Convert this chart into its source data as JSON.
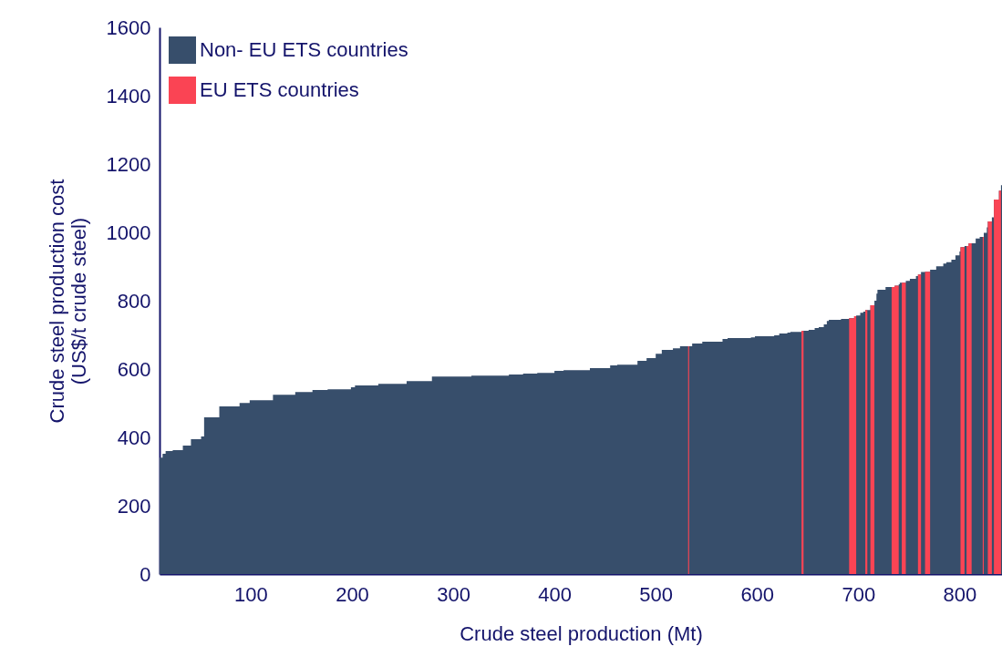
{
  "chart_data": {
    "type": "area",
    "xlabel": "Crude steel production (Mt)",
    "ylabel": "Crude steel production cost\n(US$/t crude steel)",
    "xlim": [
      10,
      842
    ],
    "xticks": [
      100,
      200,
      300,
      400,
      500,
      600,
      700,
      800
    ],
    "ylim": [
      0,
      1600
    ],
    "yticks": [
      0,
      200,
      400,
      600,
      800,
      1000,
      1200,
      1400,
      1600
    ],
    "grid": false,
    "legend": "top left",
    "series": [
      {
        "name": "Non- EU ETS countries",
        "color": "#374e6b",
        "x": [
          10,
          13,
          13,
          16,
          16,
          23,
          23,
          33,
          33,
          41,
          41,
          51,
          51,
          54,
          54,
          69,
          69,
          89,
          89,
          99,
          99,
          122,
          122,
          144,
          144,
          161,
          161,
          176,
          176,
          199,
          199,
          203,
          203,
          226,
          226,
          254,
          254,
          279,
          279,
          318,
          318,
          355,
          355,
          369,
          369,
          383,
          383,
          400,
          400,
          409,
          409,
          435,
          435,
          455,
          455,
          462,
          462,
          482,
          482,
          491,
          491,
          500,
          500,
          506,
          506,
          517,
          517,
          524,
          524,
          536,
          536,
          546,
          546,
          566,
          566,
          571,
          571,
          594,
          594,
          598,
          598,
          617,
          617,
          622,
          622,
          630,
          630,
          633,
          633,
          644,
          644,
          651,
          651,
          657,
          657,
          661,
          661,
          666,
          666,
          669,
          669,
          671,
          671,
          683,
          683,
          691,
          691,
          696,
          696,
          698,
          698,
          702,
          702,
          705,
          705,
          707,
          707,
          712,
          712,
          716,
          716,
          718,
          718,
          719,
          719,
          727,
          727,
          733,
          733,
          736,
          736,
          740,
          740,
          741,
          741,
          743,
          743,
          747,
          747,
          751,
          751,
          757,
          757,
          759,
          759,
          762,
          762,
          766,
          766,
          771,
          771,
          777,
          777,
          784,
          784,
          787,
          787,
          792,
          792,
          796,
          796,
          800,
          800,
          801,
          801,
          805,
          805,
          807,
          807,
          809,
          809,
          812,
          812,
          816,
          816,
          820,
          820,
          823,
          823,
          824,
          824,
          827,
          827,
          828,
          828,
          832,
          832,
          834,
          834,
          839,
          839,
          841,
          841,
          842,
          842
        ],
        "values": [
          341,
          341,
          352,
          352,
          360,
          360,
          363,
          363,
          376,
          376,
          395,
          395,
          403,
          403,
          459,
          459,
          491,
          491,
          501,
          501,
          509,
          509,
          525,
          525,
          533,
          533,
          539,
          539,
          541,
          541,
          547,
          547,
          552,
          552,
          557,
          557,
          565,
          565,
          578,
          578,
          581,
          581,
          584,
          584,
          587,
          587,
          589,
          589,
          595,
          595,
          597,
          597,
          603,
          603,
          611,
          611,
          613,
          613,
          624,
          624,
          632,
          632,
          645,
          645,
          656,
          656,
          661,
          661,
          667,
          667,
          675,
          675,
          680,
          680,
          688,
          688,
          691,
          691,
          693,
          693,
          696,
          696,
          699,
          699,
          704,
          704,
          707,
          707,
          709,
          709,
          712,
          712,
          715,
          715,
          720,
          720,
          723,
          723,
          731,
          731,
          741,
          741,
          744,
          744,
          747,
          747,
          749,
          749,
          755,
          755,
          757,
          757,
          765,
          765,
          768,
          768,
          773,
          773,
          787,
          787,
          800,
          800,
          821,
          821,
          832,
          832,
          840,
          840,
          840,
          840,
          844,
          844,
          848,
          848,
          853,
          853,
          853,
          853,
          858,
          858,
          864,
          864,
          872,
          872,
          877,
          877,
          884,
          884,
          885,
          885,
          891,
          891,
          901,
          901,
          909,
          909,
          913,
          913,
          920,
          920,
          933,
          933,
          944,
          944,
          957,
          957,
          960,
          960,
          960,
          960,
          968,
          968,
          968,
          968,
          982,
          982,
          987,
          987,
          987,
          987,
          999,
          999,
          1015,
          1015,
          1032,
          1032,
          1044,
          1044,
          1096,
          1096,
          1122,
          1122,
          1138,
          1138,
          1138
        ]
      },
      {
        "name": "EU ETS countries",
        "color": "#fa4454",
        "x": [
          532,
          533
        ],
        "values": [
          667,
          667
        ]
      },
      {
        "color": "#fa4454",
        "x": [
          644,
          646
        ],
        "values": [
          712,
          712
        ]
      },
      {
        "color": "#fa4454",
        "x": [
          691,
          696,
          696,
          698
        ],
        "values": [
          749,
          749,
          755,
          755
        ]
      },
      {
        "color": "#fa4454",
        "x": [
          707,
          709
        ],
        "values": [
          773,
          773
        ]
      },
      {
        "color": "#fa4454",
        "x": [
          712,
          716
        ],
        "values": [
          787,
          787
        ]
      },
      {
        "color": "#fa4454",
        "x": [
          733,
          736,
          736,
          740
        ],
        "values": [
          840,
          840,
          844,
          844
        ]
      },
      {
        "color": "#fa4454",
        "x": [
          743,
          747
        ],
        "values": [
          853,
          853
        ]
      },
      {
        "color": "#fa4454",
        "x": [
          759,
          762
        ],
        "values": [
          877,
          877
        ]
      },
      {
        "color": "#fa4454",
        "x": [
          766,
          771
        ],
        "values": [
          885,
          885
        ]
      },
      {
        "color": "#fa4454",
        "x": [
          801,
          805
        ],
        "values": [
          957,
          957
        ]
      },
      {
        "color": "#fa4454",
        "x": [
          807,
          809,
          809,
          812
        ],
        "values": [
          960,
          960,
          968,
          968
        ]
      },
      {
        "color": "#fa4454",
        "x": [
          823,
          824
        ],
        "values": [
          987,
          987
        ]
      },
      {
        "color": "#fa4454",
        "x": [
          828,
          832
        ],
        "values": [
          1032,
          1032
        ]
      },
      {
        "color": "#fa4454",
        "x": [
          834,
          839,
          839,
          841
        ],
        "values": [
          1096,
          1096,
          1122,
          1122
        ]
      }
    ]
  }
}
